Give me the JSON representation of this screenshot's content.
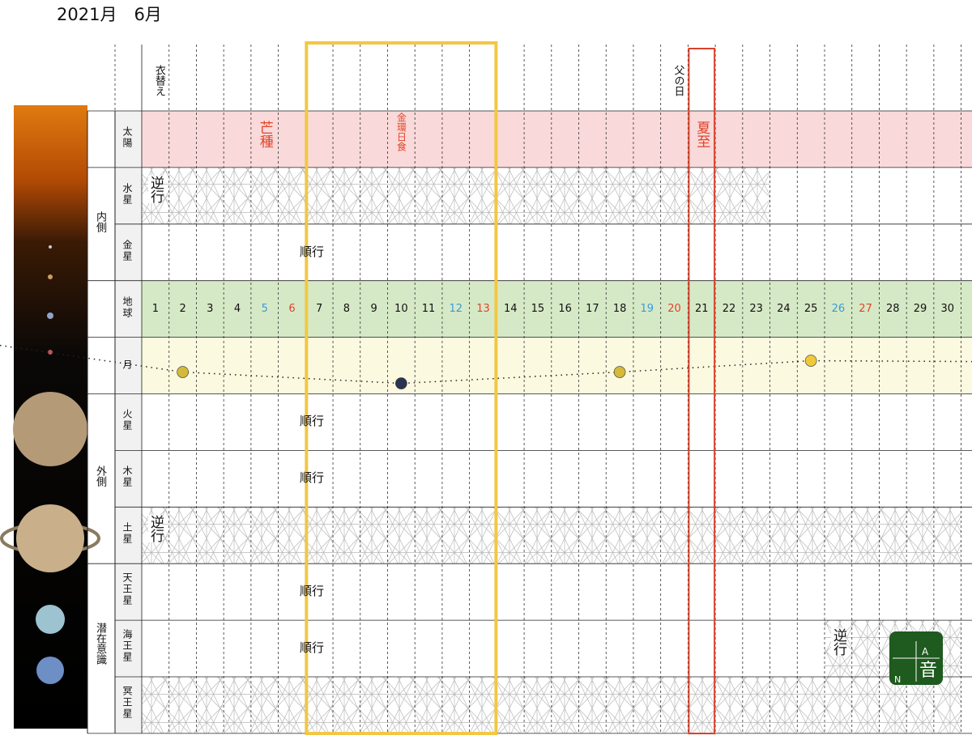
{
  "header": {
    "title": "2021月　6月",
    "events": [
      {
        "day": 1,
        "text": "衣替え"
      },
      {
        "day": 20,
        "text": "父の日"
      }
    ]
  },
  "days": [
    1,
    2,
    3,
    4,
    5,
    6,
    7,
    8,
    9,
    10,
    11,
    12,
    13,
    14,
    15,
    16,
    17,
    18,
    19,
    20,
    21,
    22,
    23,
    24,
    25,
    26,
    27,
    28,
    29,
    30
  ],
  "saturdays": [
    5,
    12,
    19,
    26
  ],
  "sundays": [
    6,
    13,
    20,
    27
  ],
  "saturday_color": "#3b9ad9",
  "sunday_color": "#e0442a",
  "sections": [
    {
      "rows": [
        {
          "label": "太陽",
          "band": "#f9d9d9",
          "events": [
            {
              "day": 5,
              "text": "芒種"
            },
            {
              "day": 10,
              "text": "金環日食"
            },
            {
              "day": 21,
              "text": "夏至"
            }
          ]
        }
      ]
    },
    {
      "group": "内側",
      "rows": [
        {
          "label": "水星",
          "retrograde": {
            "text": "逆行",
            "from": 1,
            "to": 23
          }
        },
        {
          "label": "金星",
          "motion": "順行"
        }
      ]
    },
    {
      "rows": [
        {
          "label": "地球",
          "band": "#d6e9c6",
          "show_days": true
        }
      ]
    },
    {
      "rows": [
        {
          "label": "月",
          "band": "#fbf9e0",
          "moon_days": [
            2,
            10,
            18,
            25
          ]
        }
      ]
    },
    {
      "group": "外側",
      "rows": [
        {
          "label": "火星",
          "motion": "順行"
        },
        {
          "label": "木星",
          "motion": "順行"
        },
        {
          "label": "土星",
          "retrograde": {
            "text": "逆行",
            "from": 1,
            "to": 30
          }
        }
      ]
    },
    {
      "group": "潜在意識",
      "rows": [
        {
          "label": "天王星",
          "motion": "順行"
        },
        {
          "label": "海王星",
          "motion": "順行",
          "retrograde": {
            "text": "逆行",
            "from": 26,
            "to": 30
          }
        },
        {
          "label": "冥王星",
          "retrograde": {
            "from": 1,
            "to": 30
          }
        }
      ]
    }
  ],
  "highlights": [
    {
      "from": 7,
      "to": 13,
      "color": "#f2c744"
    },
    {
      "from": 21,
      "to": 21,
      "color": "#d9432c"
    }
  ],
  "logo": {
    "top": "A",
    "bottom": "N",
    "center": "音",
    "color": "#1f5a1f"
  }
}
